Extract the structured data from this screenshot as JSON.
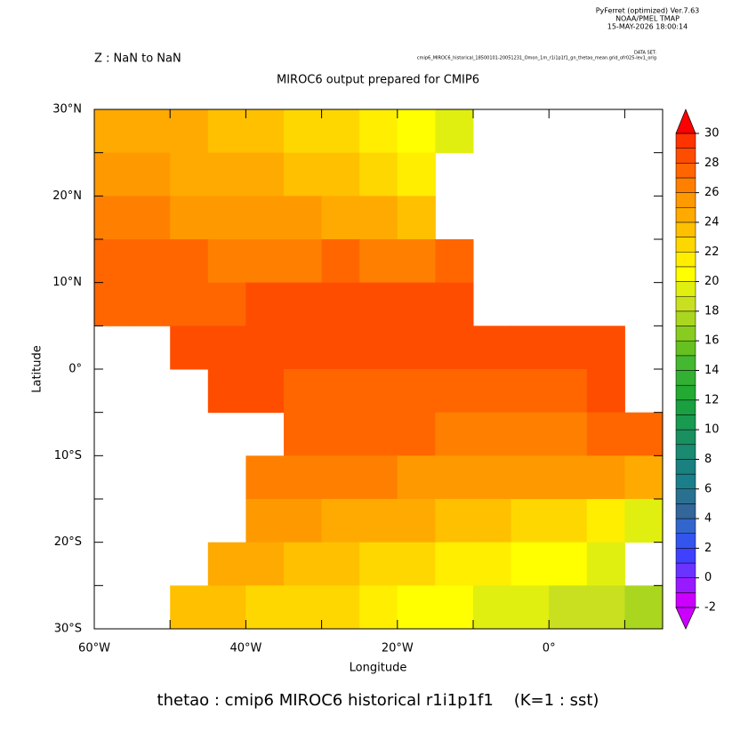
{
  "chart_data": {
    "type": "heatmap",
    "header": [
      "PyFerret (optimized) Ver.7.63",
      "NOAA/PMEL TMAP",
      "15-MAY-2026 18:00:14"
    ],
    "dataset_label": "DATA SET:",
    "dataset": "cmip6_MIROC6_historical_18500101-20051231_Omon_1m_r1i1p1f1_gn_thetao_mean.grid_ofr025-lev1_orig",
    "subtitle": "Z : NaN to NaN",
    "title": "MIROC6 output prepared for CMIP6",
    "xlabel": "Longitude",
    "ylabel": "Latitude",
    "caption": "thetao : cmip6 MIROC6 historical r1i1p1f1    (K=1 : sst)",
    "x": [
      -57.5,
      -52.5,
      -47.5,
      -42.5,
      -37.5,
      -32.5,
      -27.5,
      -22.5,
      -17.5,
      -12.5,
      -7.5,
      -2.5,
      2.5,
      7.5,
      12.5
    ],
    "y": [
      27.5,
      22.5,
      17.5,
      12.5,
      7.5,
      2.5,
      -2.5,
      -7.5,
      -12.5,
      -17.5,
      -22.5,
      -27.5
    ],
    "z": [
      [
        24.5,
        24.5,
        24,
        23.5,
        23,
        22.5,
        22,
        21.5,
        20.5,
        19.5,
        null,
        null,
        null,
        null,
        null
      ],
      [
        25.5,
        25,
        24.5,
        24,
        24,
        23.5,
        23,
        22.5,
        21,
        null,
        null,
        null,
        null,
        null,
        null
      ],
      [
        26,
        26,
        25.5,
        25.5,
        25,
        25,
        24.5,
        24,
        23.5,
        null,
        null,
        null,
        null,
        null,
        null
      ],
      [
        27,
        27,
        27,
        26.5,
        26.5,
        26.5,
        27,
        26.5,
        26,
        27,
        null,
        null,
        null,
        null,
        null
      ],
      [
        27,
        27.5,
        27.5,
        27.5,
        28,
        28,
        28,
        28.5,
        28.5,
        28.5,
        null,
        null,
        null,
        null,
        null
      ],
      [
        null,
        null,
        28,
        28,
        28,
        28,
        28,
        28.5,
        28.5,
        28.5,
        28.5,
        28.5,
        28.5,
        28.5,
        null
      ],
      [
        null,
        null,
        null,
        28,
        28,
        27.5,
        27.5,
        27.5,
        27.5,
        27,
        27,
        27,
        27.5,
        28,
        null
      ],
      [
        null,
        null,
        null,
        null,
        null,
        27.5,
        27,
        27,
        27,
        26.5,
        26.5,
        26.5,
        26.5,
        27,
        27
      ],
      [
        null,
        null,
        null,
        null,
        26,
        26.5,
        26,
        26,
        25.5,
        25.5,
        25,
        25,
        25,
        25,
        24.5
      ],
      [
        null,
        null,
        null,
        null,
        25,
        25,
        24.5,
        24,
        24,
        23.5,
        23,
        22.5,
        22,
        21.5,
        19.5
      ],
      [
        null,
        null,
        null,
        24.5,
        24,
        23.5,
        23,
        22.5,
        22,
        21.5,
        21,
        20.5,
        20,
        19.5,
        null
      ],
      [
        null,
        null,
        23,
        23,
        22.5,
        22,
        22,
        21.5,
        20.5,
        20,
        19.5,
        19,
        18.5,
        18,
        17.5
      ]
    ],
    "xlim": [
      -60,
      15
    ],
    "ylim": [
      -30,
      30
    ],
    "xticks": [
      {
        "value": -60,
        "label": "60°W"
      },
      {
        "value": -40,
        "label": "40°W"
      },
      {
        "value": -20,
        "label": "20°W"
      },
      {
        "value": 0,
        "label": "0°"
      }
    ],
    "xminor": [
      -50,
      -30,
      -10,
      10
    ],
    "yticks": [
      {
        "value": 30,
        "label": "30°N"
      },
      {
        "value": 20,
        "label": "20°N"
      },
      {
        "value": 10,
        "label": "10°N"
      },
      {
        "value": 0,
        "label": "0°"
      },
      {
        "value": -10,
        "label": "10°S"
      },
      {
        "value": -20,
        "label": "20°S"
      },
      {
        "value": -30,
        "label": "30°S"
      }
    ],
    "yminor": [
      25,
      15,
      5,
      -5,
      -15,
      -25
    ],
    "levels": [
      -2,
      -1,
      0,
      1,
      2,
      3,
      4,
      5,
      6,
      7,
      8,
      9,
      10,
      11,
      12,
      13,
      14,
      15,
      16,
      17,
      18,
      19,
      20,
      21,
      22,
      23,
      24,
      25,
      26,
      27,
      28,
      29,
      30
    ],
    "colors": [
      "#cc00ff",
      "#9a1aff",
      "#6a33ff",
      "#4040ff",
      "#3355ee",
      "#3366cc",
      "#336699",
      "#2a7090",
      "#1a7f8a",
      "#1a8080",
      "#1a8a70",
      "#1a8f60",
      "#1a9950",
      "#1aa040",
      "#22aa33",
      "#33b033",
      "#44b830",
      "#66c020",
      "#88cc20",
      "#aad620",
      "#c8e020",
      "#e0ef10",
      "#ffff00",
      "#ffee00",
      "#ffd700",
      "#ffc000",
      "#ffaa00",
      "#ff9900",
      "#ff8000",
      "#ff6600",
      "#ff4d00",
      "#ff3300"
    ],
    "under_color": "#cc00ff",
    "over_color": "#ff0000",
    "colorbar_ticks": [
      -2,
      0,
      2,
      4,
      6,
      8,
      10,
      12,
      14,
      16,
      18,
      20,
      22,
      24,
      26,
      28,
      30
    ]
  }
}
